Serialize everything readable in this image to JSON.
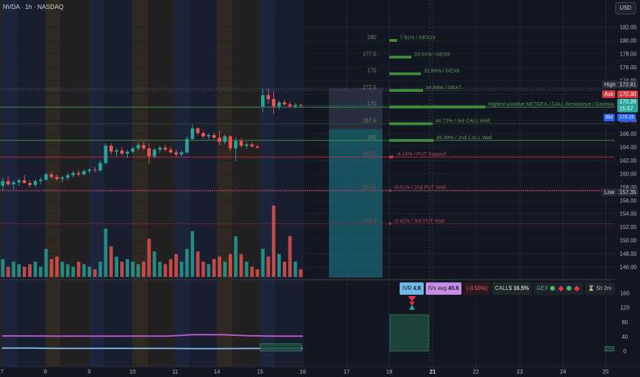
{
  "symbol_title": "NVDA · 1h · NASDAQ",
  "currency_button": "USD",
  "colors": {
    "background": "#131722",
    "up": "#26a69a",
    "down": "#ef5350",
    "gex_green": "#3f8f3a",
    "put_red": "#c43c46",
    "teal_zone": "#1b5a68"
  },
  "chart_data": {
    "type": "candlestick",
    "y_axis": {
      "range": [
        144.4,
        183.5
      ],
      "ticks": [
        146,
        148,
        150,
        152,
        154,
        156,
        158,
        160,
        162,
        164,
        166,
        168,
        170,
        172,
        174,
        176,
        178,
        180,
        182
      ],
      "tick_labels": [
        "146.00",
        "148.00",
        "150.00",
        "152.00",
        "154.00",
        "156.00",
        "158.00",
        "160.00",
        "162.00",
        "164.00",
        "166.00",
        "168.00",
        "170.00",
        "172.00",
        "174.00",
        "176.00",
        "178.00",
        "180.00",
        "182.00"
      ]
    },
    "x_axis": {
      "tick_labels": [
        "7",
        "8",
        "9",
        "10",
        "11",
        "14",
        "15",
        "16",
        "17",
        "18",
        "21",
        "22",
        "23",
        "24",
        "25"
      ]
    },
    "price_labels": [
      {
        "name": "High",
        "value": "172.81"
      },
      {
        "name": "Ask",
        "value": "170.30"
      },
      {
        "name": "Last",
        "value": "170.26",
        "countdown": "15:57"
      },
      {
        "name": "Bid",
        "value": "170.25"
      },
      {
        "name": "Low",
        "value": "157.35"
      }
    ],
    "gex_levels": [
      {
        "strike": "180",
        "label": "7.91% / GEX10",
        "type": "call",
        "strength": 0.08
      },
      {
        "strike": "177.5",
        "label": "23.01% / GEX9",
        "type": "call",
        "strength": 0.23
      },
      {
        "strike": "175",
        "label": "32.89% / GEX8",
        "type": "call",
        "strength": 0.33
      },
      {
        "strike": "172.5",
        "label": "34.84% / GEX7",
        "type": "call",
        "strength": 0.35
      },
      {
        "strike": "170",
        "label": "Highest positive NETGEX / CALL Resistance / Gamma Wall",
        "type": "call",
        "strength": 1.0
      },
      {
        "strike": "167.5",
        "label": "44.73% / 3rd CALL Wall",
        "type": "call",
        "strength": 0.45
      },
      {
        "strike": "165",
        "label": "45.98% / 2nd CALL Wall",
        "type": "call",
        "strength": 0.46
      },
      {
        "strike": "162.5",
        "label": "-4.14% / PUT Support",
        "type": "put",
        "strength": 0.04
      },
      {
        "strike": "157.5",
        "label": "-0.61% / 2nd PUT Wall",
        "type": "put",
        "strength": 0.01
      },
      {
        "strike": "152.5",
        "label": "-0.42% / 3rd PUT Wall",
        "type": "put",
        "strength": 0.01
      }
    ],
    "candles": [
      {
        "o": 158.2,
        "h": 159.4,
        "l": 157.4,
        "c": 158.9
      },
      {
        "o": 158.9,
        "h": 159.6,
        "l": 158.1,
        "c": 158.4
      },
      {
        "o": 158.4,
        "h": 159.1,
        "l": 157.6,
        "c": 158.7
      },
      {
        "o": 158.7,
        "h": 159.3,
        "l": 158.2,
        "c": 159.0
      },
      {
        "o": 159.0,
        "h": 159.8,
        "l": 158.5,
        "c": 158.6
      },
      {
        "o": 158.6,
        "h": 159.0,
        "l": 157.9,
        "c": 158.3
      },
      {
        "o": 158.3,
        "h": 159.2,
        "l": 158.0,
        "c": 158.9
      },
      {
        "o": 158.9,
        "h": 159.5,
        "l": 158.4,
        "c": 159.1
      },
      {
        "o": 159.1,
        "h": 160.2,
        "l": 158.9,
        "c": 159.9
      },
      {
        "o": 159.9,
        "h": 160.3,
        "l": 159.2,
        "c": 159.5
      },
      {
        "o": 159.5,
        "h": 159.9,
        "l": 158.9,
        "c": 159.2
      },
      {
        "o": 159.2,
        "h": 159.7,
        "l": 158.7,
        "c": 159.4
      },
      {
        "o": 159.4,
        "h": 160.1,
        "l": 159.0,
        "c": 159.8
      },
      {
        "o": 159.8,
        "h": 160.4,
        "l": 159.4,
        "c": 160.1
      },
      {
        "o": 160.1,
        "h": 160.5,
        "l": 159.6,
        "c": 159.9
      },
      {
        "o": 159.9,
        "h": 160.6,
        "l": 159.7,
        "c": 160.4
      },
      {
        "o": 160.4,
        "h": 160.8,
        "l": 160.0,
        "c": 160.6
      },
      {
        "o": 160.6,
        "h": 161.0,
        "l": 160.2,
        "c": 160.5
      },
      {
        "o": 160.5,
        "h": 162.0,
        "l": 160.3,
        "c": 161.6
      },
      {
        "o": 161.6,
        "h": 164.6,
        "l": 161.4,
        "c": 164.2
      },
      {
        "o": 164.2,
        "h": 164.6,
        "l": 162.9,
        "c": 163.3
      },
      {
        "o": 163.3,
        "h": 163.8,
        "l": 162.6,
        "c": 163.5
      },
      {
        "o": 163.5,
        "h": 164.0,
        "l": 162.8,
        "c": 163.0
      },
      {
        "o": 163.0,
        "h": 163.6,
        "l": 162.4,
        "c": 163.3
      },
      {
        "o": 163.3,
        "h": 164.1,
        "l": 163.0,
        "c": 163.8
      },
      {
        "o": 163.8,
        "h": 164.7,
        "l": 163.4,
        "c": 164.3
      },
      {
        "o": 164.3,
        "h": 164.8,
        "l": 163.5,
        "c": 163.8
      },
      {
        "o": 163.8,
        "h": 164.6,
        "l": 161.5,
        "c": 162.6
      },
      {
        "o": 162.6,
        "h": 163.9,
        "l": 162.3,
        "c": 163.6
      },
      {
        "o": 163.6,
        "h": 164.2,
        "l": 163.1,
        "c": 163.9
      },
      {
        "o": 163.9,
        "h": 164.3,
        "l": 163.4,
        "c": 163.6
      },
      {
        "o": 163.6,
        "h": 164.0,
        "l": 163.0,
        "c": 163.2
      },
      {
        "o": 163.2,
        "h": 163.6,
        "l": 162.5,
        "c": 162.9
      },
      {
        "o": 162.9,
        "h": 163.5,
        "l": 162.6,
        "c": 163.2
      },
      {
        "o": 163.2,
        "h": 165.6,
        "l": 163.0,
        "c": 165.2
      },
      {
        "o": 165.2,
        "h": 167.5,
        "l": 165.0,
        "c": 166.8
      },
      {
        "o": 166.8,
        "h": 167.0,
        "l": 165.8,
        "c": 166.1
      },
      {
        "o": 166.1,
        "h": 166.5,
        "l": 165.3,
        "c": 165.6
      },
      {
        "o": 165.6,
        "h": 166.1,
        "l": 165.1,
        "c": 165.8
      },
      {
        "o": 165.8,
        "h": 166.2,
        "l": 165.2,
        "c": 165.4
      },
      {
        "o": 165.4,
        "h": 166.4,
        "l": 164.3,
        "c": 164.8
      },
      {
        "o": 164.8,
        "h": 165.9,
        "l": 164.5,
        "c": 165.6
      },
      {
        "o": 165.6,
        "h": 165.8,
        "l": 163.4,
        "c": 163.8
      },
      {
        "o": 163.8,
        "h": 165.5,
        "l": 161.9,
        "c": 164.9
      },
      {
        "o": 164.9,
        "h": 165.3,
        "l": 163.9,
        "c": 164.2
      },
      {
        "o": 164.2,
        "h": 164.8,
        "l": 163.7,
        "c": 164.4
      },
      {
        "o": 164.4,
        "h": 164.7,
        "l": 163.9,
        "c": 164.1
      },
      {
        "o": 164.1,
        "h": 164.3,
        "l": 163.8,
        "c": 163.9
      },
      {
        "o": 170.1,
        "h": 172.8,
        "l": 169.2,
        "c": 171.8
      },
      {
        "o": 171.8,
        "h": 172.7,
        "l": 170.5,
        "c": 171.2
      },
      {
        "o": 171.2,
        "h": 172.4,
        "l": 169.0,
        "c": 170.1
      },
      {
        "o": 170.1,
        "h": 171.0,
        "l": 169.6,
        "c": 170.7
      },
      {
        "o": 170.7,
        "h": 171.1,
        "l": 170.2,
        "c": 170.4
      },
      {
        "o": 170.4,
        "h": 170.8,
        "l": 169.9,
        "c": 170.1
      },
      {
        "o": 170.1,
        "h": 170.6,
        "l": 169.8,
        "c": 170.3
      },
      {
        "o": 170.3,
        "h": 170.5,
        "l": 170.0,
        "c": 170.26
      }
    ],
    "volume_relative": [
      0.35,
      0.2,
      0.3,
      0.25,
      0.2,
      0.25,
      0.3,
      0.2,
      0.55,
      0.35,
      0.4,
      0.3,
      0.25,
      0.2,
      0.3,
      0.25,
      0.2,
      0.15,
      0.3,
      0.95,
      0.6,
      0.4,
      0.3,
      0.35,
      0.3,
      0.25,
      0.3,
      0.75,
      0.5,
      0.3,
      0.25,
      0.35,
      0.45,
      0.3,
      0.55,
      0.9,
      0.5,
      0.3,
      0.25,
      0.35,
      0.4,
      0.3,
      0.45,
      0.8,
      0.45,
      0.3,
      0.2,
      0.15,
      0.55,
      0.4,
      1.4,
      0.45,
      0.3,
      0.8,
      0.3,
      0.15
    ],
    "indicator_axis_ticks": [
      "160",
      "120",
      "80",
      "40",
      "0"
    ],
    "indicator_lines": [
      {
        "name": "IVx",
        "color": "#c058d8",
        "values": [
          41.5,
          41.5,
          41.0,
          41.0,
          41.0,
          41.2,
          41.0,
          45.0,
          45.0,
          42.0,
          41.0,
          41.0
        ]
      },
      {
        "name": "IV",
        "color": "#7fb8e8",
        "values": [
          8.0,
          8.0,
          7.2,
          7.2,
          7.0,
          7.0,
          7.0,
          6.5,
          6.5,
          6.8,
          7.0,
          7.0
        ]
      }
    ],
    "indicator_hist": [
      20,
      21,
      12
    ]
  },
  "status_chips": {
    "ivr_label": "IVR",
    "ivr_value": "4.8",
    "ivx_label": "IVx avg",
    "ivx_value": "40.6",
    "change": "(-0.55%)",
    "calls_label": "CALL$",
    "calls_value": "16.5%",
    "gex_label": "GEX",
    "timer": "5h 2m"
  }
}
